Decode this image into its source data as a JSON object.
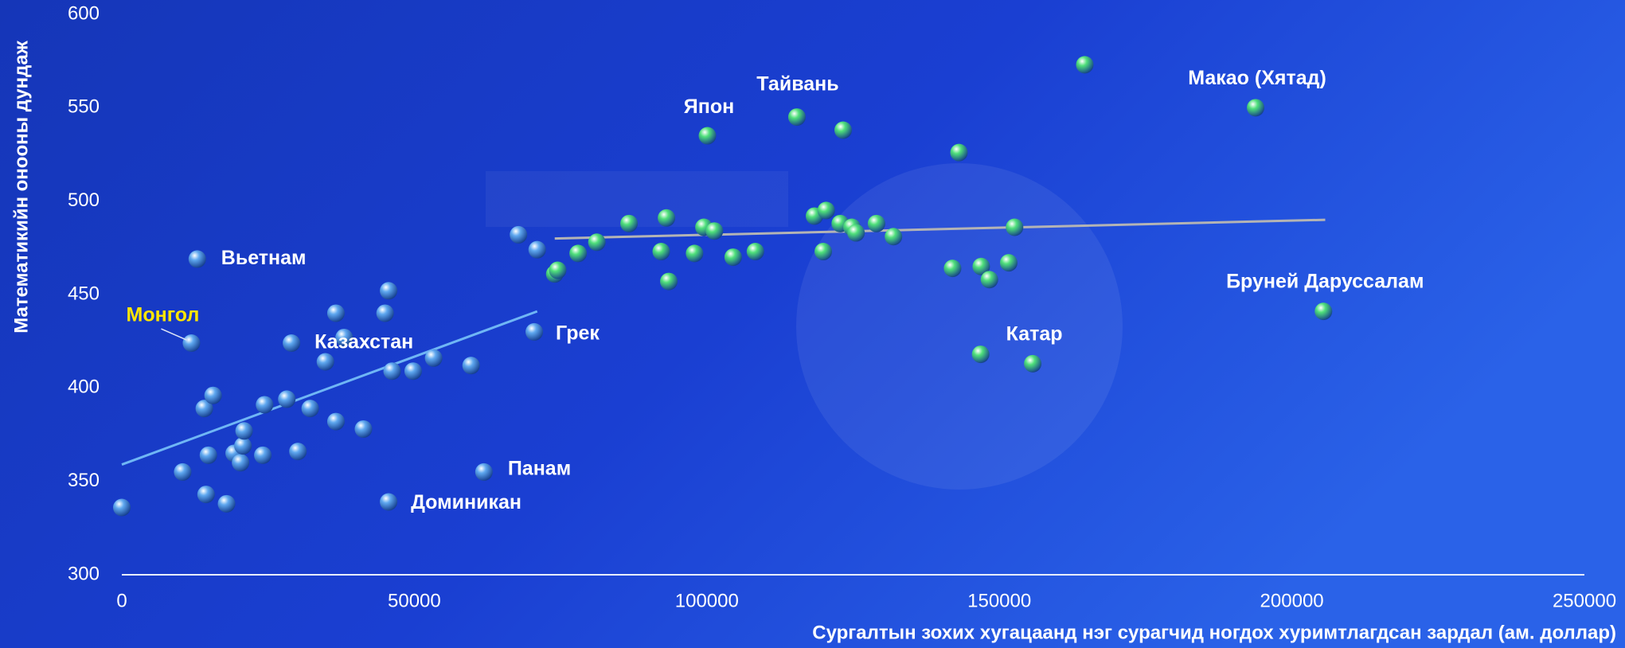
{
  "chart_data": {
    "type": "scatter",
    "x_label": "Сургалтын зохих хугацаанд нэг сурагчид ногдох хуримтлагдсан зардал (ам. доллар)",
    "y_label": "Математикийн онооны дундаж",
    "xlim": [
      0,
      250000
    ],
    "ylim": [
      300,
      600
    ],
    "xticks": [
      0,
      50000,
      100000,
      150000,
      200000,
      250000
    ],
    "yticks": [
      300,
      350,
      400,
      450,
      500,
      550,
      600
    ],
    "series": [
      {
        "color": "#5fa8f0",
        "x": [
          0,
          10400,
          12900,
          11900,
          14400,
          14800,
          14100,
          15600,
          17900,
          19200,
          20300,
          20700,
          20900,
          24100,
          24400,
          28200,
          29000,
          30100,
          32200,
          34800,
          36600,
          36600,
          38000,
          41300,
          45000,
          45600,
          45600,
          46200,
          49800,
          53300,
          59700,
          61900,
          67800,
          70500,
          71000
        ],
        "y": [
          336,
          355,
          469,
          424,
          343,
          364,
          389,
          396,
          338,
          365,
          360,
          369,
          377,
          364,
          391,
          394,
          424,
          366,
          389,
          414,
          382,
          440,
          427,
          378,
          440,
          452,
          339,
          409,
          409,
          416,
          412,
          355,
          482,
          430,
          474
        ]
      },
      {
        "color": "#4fe07a",
        "x": [
          74000,
          74500,
          78000,
          81200,
          86700,
          92200,
          93100,
          93500,
          97900,
          99500,
          101300,
          100100,
          104500,
          108300,
          115400,
          118400,
          119900,
          120400,
          122800,
          123300,
          124800,
          125500,
          129000,
          131900,
          143100,
          142000,
          146900,
          146800,
          148300,
          151600,
          152600,
          155700,
          164600,
          193800,
          205400
        ],
        "y": [
          461,
          463,
          472,
          478,
          488,
          473,
          491,
          457,
          472,
          486,
          484,
          535,
          470,
          473,
          545,
          492,
          473,
          495,
          488,
          538,
          486,
          483,
          488,
          481,
          526,
          464,
          465,
          418,
          458,
          467,
          486,
          413,
          573,
          550,
          441
        ]
      }
    ],
    "trendlines": [
      {
        "color": "#6fb6f5",
        "x": [
          0,
          71000
        ],
        "y": [
          359,
          441
        ]
      },
      {
        "color": "#b4b4b4",
        "x": [
          74000,
          205700
        ],
        "y": [
          480,
          490
        ]
      }
    ],
    "annotations": [
      {
        "text": "Вьетнам",
        "x": 12900,
        "y": 469,
        "color": "#ffffff"
      },
      {
        "text": "Монгол",
        "x": 11900,
        "y": 424,
        "color": "#ffe600"
      },
      {
        "text": "Казахстан",
        "x": 29000,
        "y": 424,
        "color": "#ffffff"
      },
      {
        "text": "Грек",
        "x": 70500,
        "y": 430,
        "color": "#ffffff"
      },
      {
        "text": "Панам",
        "x": 61900,
        "y": 355,
        "color": "#ffffff"
      },
      {
        "text": "Доминикан",
        "x": 45600,
        "y": 339,
        "color": "#ffffff"
      },
      {
        "text": "Япон",
        "x": 100100,
        "y": 535,
        "color": "#ffffff"
      },
      {
        "text": "Тайвань",
        "x": 115400,
        "y": 545,
        "color": "#ffffff"
      },
      {
        "text": "Катар",
        "x": 155700,
        "y": 413,
        "color": "#ffffff"
      },
      {
        "text": "Макао (Хятад)",
        "x": 193800,
        "y": 550,
        "color": "#ffffff"
      },
      {
        "text": "Бруней Даруссалам",
        "x": 205400,
        "y": 441,
        "color": "#ffffff"
      }
    ]
  }
}
